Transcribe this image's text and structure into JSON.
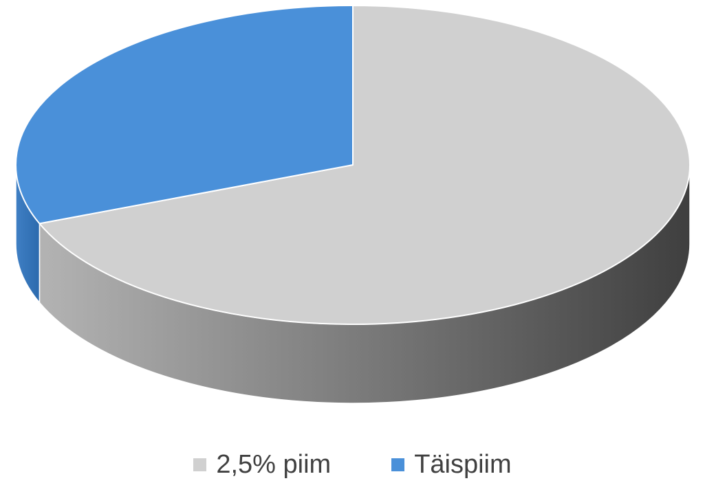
{
  "chart_data": {
    "type": "pie",
    "style": "3d",
    "title": "",
    "slices": [
      {
        "label": "2,5% piim",
        "value": 69,
        "color": "#d0d0d0"
      },
      {
        "label": "Täispiim",
        "value": 31,
        "color": "#4a90d9"
      }
    ],
    "legend_position": "bottom"
  },
  "legend": {
    "items": [
      {
        "label": "2,5% piim",
        "color": "#d0d0d0"
      },
      {
        "label": "Täispiim",
        "color": "#4a90d9"
      }
    ]
  }
}
